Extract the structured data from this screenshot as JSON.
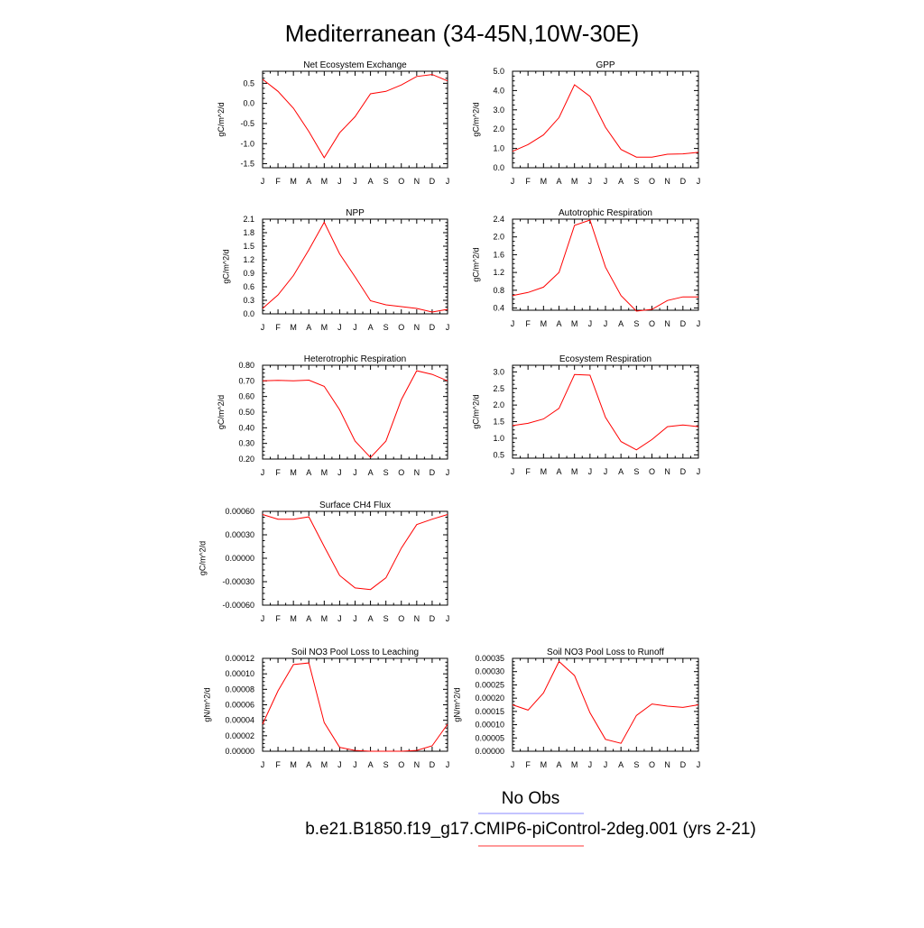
{
  "title": "Mediterranean (34-45N,10W-30E)",
  "legend": {
    "obs_label": "No Obs",
    "obs_color": "#8888ff",
    "model_label": "b.e21.B1850.f19_g17.CMIP6-piControl-2deg.001 (yrs 2-21)",
    "model_color": "#ff3333"
  },
  "chart_data": [
    {
      "type": "line",
      "title": "Net Ecosystem Exchange",
      "ylabel": "gC/m^2/d",
      "categories": [
        "J",
        "F",
        "M",
        "A",
        "M",
        "J",
        "J",
        "A",
        "S",
        "O",
        "N",
        "D",
        "J"
      ],
      "ylim": [
        -1.6,
        0.8
      ],
      "yticks": [
        "0.5",
        "0.0",
        "-0.5",
        "-1.0",
        "-1.5"
      ],
      "ytick_values": [
        0.5,
        0.0,
        -0.5,
        -1.0,
        -1.5
      ],
      "series": [
        {
          "values": [
            0.6,
            0.3,
            -0.12,
            -0.7,
            -1.35,
            -0.73,
            -0.33,
            0.24,
            0.3,
            0.46,
            0.67,
            0.72,
            0.56
          ],
          "color": "#ff0000"
        }
      ]
    },
    {
      "type": "line",
      "title": "GPP",
      "ylabel": "gC/m^2/d",
      "categories": [
        "J",
        "F",
        "M",
        "A",
        "M",
        "J",
        "J",
        "A",
        "S",
        "O",
        "N",
        "D",
        "J"
      ],
      "ylim": [
        0.0,
        5.0
      ],
      "yticks": [
        "5.0",
        "4.0",
        "3.0",
        "2.0",
        "1.0",
        "0.0"
      ],
      "ytick_values": [
        5.0,
        4.0,
        3.0,
        2.0,
        1.0,
        0.0
      ],
      "series": [
        {
          "values": [
            0.85,
            1.2,
            1.7,
            2.6,
            4.3,
            3.7,
            2.1,
            0.95,
            0.55,
            0.55,
            0.7,
            0.72,
            0.8
          ],
          "color": "#ff0000"
        }
      ]
    },
    {
      "type": "line",
      "title": "NPP",
      "ylabel": "gC/m^2/d",
      "categories": [
        "J",
        "F",
        "M",
        "A",
        "M",
        "J",
        "J",
        "A",
        "S",
        "O",
        "N",
        "D",
        "J"
      ],
      "ylim": [
        0.0,
        2.1
      ],
      "yticks": [
        "2.1",
        "1.8",
        "1.5",
        "1.2",
        "0.9",
        "0.6",
        "0.3",
        "0.0"
      ],
      "ytick_values": [
        2.1,
        1.8,
        1.5,
        1.2,
        0.9,
        0.6,
        0.3,
        0.0
      ],
      "series": [
        {
          "values": [
            0.12,
            0.42,
            0.85,
            1.42,
            2.03,
            1.33,
            0.82,
            0.29,
            0.2,
            0.16,
            0.12,
            0.04,
            0.1
          ],
          "color": "#ff0000"
        }
      ]
    },
    {
      "type": "line",
      "title": "Autotrophic Respiration",
      "ylabel": "gC/m^2/d",
      "categories": [
        "J",
        "F",
        "M",
        "A",
        "M",
        "J",
        "J",
        "A",
        "S",
        "O",
        "N",
        "D",
        "J"
      ],
      "ylim": [
        0.35,
        2.4
      ],
      "yticks": [
        "2.4",
        "2.0",
        "1.6",
        "1.2",
        "0.8",
        "0.4"
      ],
      "ytick_values": [
        2.4,
        2.0,
        1.6,
        1.2,
        0.8,
        0.4
      ],
      "series": [
        {
          "values": [
            0.68,
            0.75,
            0.87,
            1.2,
            2.26,
            2.38,
            1.32,
            0.68,
            0.33,
            0.37,
            0.57,
            0.65,
            0.65
          ],
          "color": "#ff0000"
        }
      ]
    },
    {
      "type": "line",
      "title": "Heterotrophic Respiration",
      "ylabel": "gC/m^2/d",
      "categories": [
        "J",
        "F",
        "M",
        "A",
        "M",
        "J",
        "J",
        "A",
        "S",
        "O",
        "N",
        "D",
        "J"
      ],
      "ylim": [
        0.2,
        0.8
      ],
      "yticks": [
        "0.80",
        "0.70",
        "0.60",
        "0.50",
        "0.40",
        "0.30",
        "0.20"
      ],
      "ytick_values": [
        0.8,
        0.7,
        0.6,
        0.5,
        0.4,
        0.3,
        0.2
      ],
      "series": [
        {
          "values": [
            0.7,
            0.703,
            0.7,
            0.705,
            0.665,
            0.515,
            0.315,
            0.21,
            0.315,
            0.58,
            0.765,
            0.742,
            0.7
          ],
          "color": "#ff0000"
        }
      ]
    },
    {
      "type": "line",
      "title": "Ecosystem Respiration",
      "ylabel": "gC/m^2/d",
      "categories": [
        "J",
        "F",
        "M",
        "A",
        "M",
        "J",
        "J",
        "A",
        "S",
        "O",
        "N",
        "D",
        "J"
      ],
      "ylim": [
        0.4,
        3.2
      ],
      "yticks": [
        "3.0",
        "2.5",
        "2.0",
        "1.5",
        "1.0",
        "0.5"
      ],
      "ytick_values": [
        3.0,
        2.5,
        2.0,
        1.5,
        1.0,
        0.5
      ],
      "series": [
        {
          "values": [
            1.38,
            1.45,
            1.58,
            1.9,
            2.92,
            2.9,
            1.63,
            0.9,
            0.65,
            0.96,
            1.35,
            1.4,
            1.35
          ],
          "color": "#ff0000"
        }
      ]
    },
    {
      "type": "line",
      "title": "Surface CH4 Flux",
      "ylabel": "gC/m^2/d",
      "categories": [
        "J",
        "F",
        "M",
        "A",
        "M",
        "J",
        "J",
        "A",
        "S",
        "O",
        "N",
        "D",
        "J"
      ],
      "ylim": [
        -0.0006,
        0.0006
      ],
      "yticks": [
        "0.00060",
        "0.00030",
        "0.00000",
        "-0.00030",
        "-0.00060"
      ],
      "ytick_values": [
        0.0006,
        0.0003,
        0.0,
        -0.0003,
        -0.0006
      ],
      "series": [
        {
          "values": [
            0.00056,
            0.0005,
            0.0005,
            0.00053,
            0.00015,
            -0.00022,
            -0.00038,
            -0.0004,
            -0.00025,
            0.00013,
            0.00043,
            0.0005,
            0.00056
          ],
          "color": "#ff0000"
        }
      ]
    },
    {
      "type": "line",
      "title": "Soil NO3 Pool Loss to Leaching",
      "ylabel": "gN/m^2/d",
      "categories": [
        "J",
        "F",
        "M",
        "A",
        "M",
        "J",
        "J",
        "A",
        "S",
        "O",
        "N",
        "D",
        "J"
      ],
      "ylim": [
        0.0,
        0.00012
      ],
      "yticks": [
        "0.00012",
        "0.00010",
        "0.00008",
        "0.00006",
        "0.00004",
        "0.00002",
        "0.00000"
      ],
      "ytick_values": [
        0.00012,
        0.0001,
        8e-05,
        6e-05,
        4e-05,
        2e-05,
        0.0
      ],
      "series": [
        {
          "values": [
            3.5e-05,
            7.8e-05,
            0.000112,
            0.000114,
            3.7e-05,
            5e-06,
            1e-06,
            0.0,
            0.0,
            0.0,
            1e-06,
            7e-06,
            3.5e-05
          ],
          "color": "#ff0000"
        }
      ]
    },
    {
      "type": "line",
      "title": "Soil NO3 Pool Loss to Runoff",
      "ylabel": "gN/m^2/d",
      "categories": [
        "J",
        "F",
        "M",
        "A",
        "M",
        "J",
        "J",
        "A",
        "S",
        "O",
        "N",
        "D",
        "J"
      ],
      "ylim": [
        0.0,
        0.00035
      ],
      "yticks": [
        "0.00035",
        "0.00030",
        "0.00025",
        "0.00020",
        "0.00015",
        "0.00010",
        "0.00005",
        "0.00000"
      ],
      "ytick_values": [
        0.00035,
        0.0003,
        0.00025,
        0.0002,
        0.00015,
        0.0001,
        5e-05,
        0.0
      ],
      "series": [
        {
          "values": [
            0.000175,
            0.000155,
            0.00022,
            0.000338,
            0.000285,
            0.000145,
            4.5e-05,
            3e-05,
            0.000135,
            0.000178,
            0.00017,
            0.000165,
            0.000175
          ],
          "color": "#ff0000"
        }
      ]
    }
  ]
}
